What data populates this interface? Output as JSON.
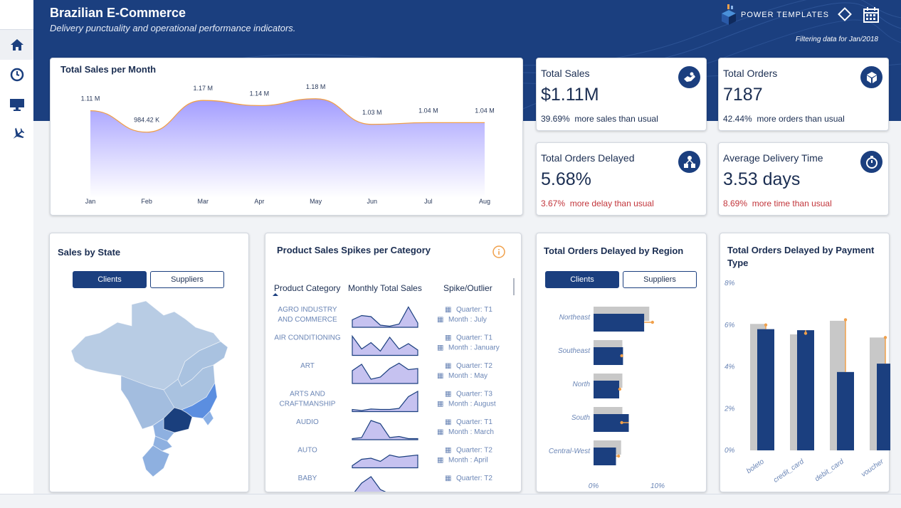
{
  "header": {
    "title": "Brazilian E-Commerce",
    "subtitle": "Delivery punctuality and operational performance indicators.",
    "brand": "POWER TEMPLATES",
    "filter_note": "Filtering data for Jan/2018"
  },
  "colors": {
    "navy": "#1b3f7f",
    "area_fill": "#a8a4ff",
    "line": "#f0a04b",
    "red_text": "#c2353b",
    "gray_bar": "#c8c8c8"
  },
  "sidebar": {
    "items": [
      {
        "icon": "home-icon"
      },
      {
        "icon": "clock-icon"
      },
      {
        "icon": "monitor-icon"
      },
      {
        "icon": "airplane-icon"
      }
    ]
  },
  "sales_chart": {
    "title": "Total Sales per Month",
    "chart_data": {
      "type": "area",
      "categories": [
        "Jan",
        "Feb",
        "Mar",
        "Apr",
        "May",
        "Jun",
        "Jul",
        "Aug"
      ],
      "values": [
        1.11,
        0.98442,
        1.17,
        1.14,
        1.18,
        1.03,
        1.04,
        1.04
      ],
      "data_labels": [
        "1.11 M",
        "984.42 K",
        "1.17 M",
        "1.14 M",
        "1.18 M",
        "1.03 M",
        "1.04 M",
        "1.04 M"
      ]
    }
  },
  "kpis": {
    "total_sales": {
      "label": "Total Sales",
      "value": "$1.11M",
      "pct": "39.69%",
      "note": "more sales than usual"
    },
    "total_orders": {
      "label": "Total Orders",
      "value": "7187",
      "pct": "42.44%",
      "note": "more orders than usual"
    },
    "orders_delayed": {
      "label": "Total Orders Delayed",
      "value": "5.68%",
      "pct": "3.67%",
      "note": "more delay than usual"
    },
    "avg_delivery": {
      "label": "Average Delivery Time",
      "value": "3.53 days",
      "pct": "8.69%",
      "note": "more time than usual"
    }
  },
  "state_map": {
    "title": "Sales by State",
    "tabs": [
      "Clients",
      "Suppliers"
    ]
  },
  "category_table": {
    "title": "Product Sales Spikes per Category",
    "columns": [
      "Product Category",
      "Monthly Total Sales",
      "Spike/Outlier"
    ],
    "rows": [
      {
        "category": [
          "AGRO INDUSTRY",
          "AND COMMERCE"
        ],
        "quarter": "Quarter: T1",
        "month": "Month : July"
      },
      {
        "category": [
          "AIR CONDITIONING"
        ],
        "quarter": "Quarter: T1",
        "month": "Month : January"
      },
      {
        "category": [
          "ART"
        ],
        "quarter": "Quarter: T2",
        "month": "Month : May"
      },
      {
        "category": [
          "ARTS AND",
          "CRAFTMANSHIP"
        ],
        "quarter": "Quarter: T3",
        "month": "Month : August"
      },
      {
        "category": [
          "AUDIO"
        ],
        "quarter": "Quarter: T1",
        "month": "Month : March"
      },
      {
        "category": [
          "AUTO"
        ],
        "quarter": "Quarter: T2",
        "month": "Month : April"
      },
      {
        "category": [
          "BABY"
        ],
        "quarter": "Quarter: T2",
        "month": ""
      }
    ]
  },
  "region_chart": {
    "title": "Total Orders Delayed by Region",
    "tabs": [
      "Clients",
      "Suppliers"
    ],
    "chart_data": {
      "type": "bar",
      "orientation": "horizontal",
      "categories": [
        "Northeast",
        "Southeast",
        "North",
        "South",
        "Central-West"
      ],
      "xlim": [
        0,
        10
      ],
      "xticks": [
        "0%",
        "10%"
      ],
      "series": [
        {
          "values": [
            8.7,
            4.5,
            4.5,
            4.5,
            4.3
          ]
        },
        {
          "values": [
            7.9,
            4.6,
            4.0,
            5.5,
            3.5
          ]
        }
      ],
      "markers": [
        9.2,
        4.4,
        4.1,
        4.4,
        3.9
      ]
    }
  },
  "payment_chart": {
    "title_lines": [
      "Total Orders Delayed by Payment",
      "Type"
    ],
    "chart_data": {
      "type": "bar",
      "categories": [
        "boleto",
        "credit_card",
        "debit_card",
        "voucher"
      ],
      "ylim": [
        0,
        8
      ],
      "yticks": [
        "0%",
        "2%",
        "4%",
        "6%",
        "8%"
      ],
      "series": [
        {
          "values": [
            6.05,
            5.55,
            6.2,
            5.4
          ]
        },
        {
          "values": [
            5.8,
            5.75,
            3.75,
            4.15
          ]
        }
      ],
      "markers": [
        6.0,
        5.6,
        6.25,
        5.4
      ]
    }
  }
}
